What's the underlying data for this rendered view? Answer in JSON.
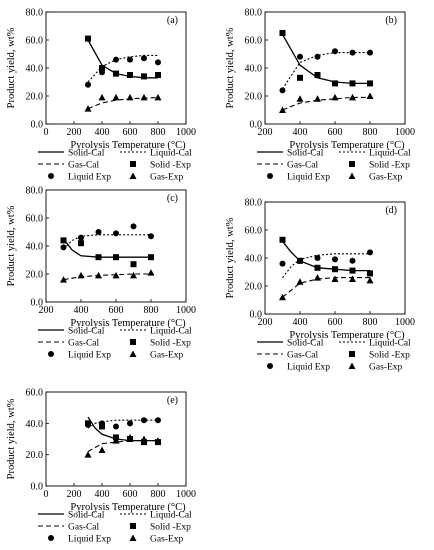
{
  "shared": {
    "xlabel": "Pyrolysis Temperature (°C)",
    "ylabel": "Product yield, wt%",
    "legend": {
      "solid_cal": "Solid-Cal",
      "liquid_cal": "Liquid-Cal",
      "gas_cal": "Gas-Cal",
      "solid_exp": "Solid -Exp",
      "liquid_exp": "Liquid Exp",
      "gas_exp": "Gas-Exp"
    }
  },
  "chart_data": [
    {
      "type": "line",
      "panel_label": "(a)",
      "xlabel": "Pyrolysis Temperature (°C)",
      "ylabel": "Product yield, wt%",
      "xlim": [
        0,
        1000
      ],
      "ylim": [
        0,
        80
      ],
      "xticks": [
        0,
        200,
        400,
        600,
        800,
        1000
      ],
      "yticks": [
        "0.0",
        "20.0",
        "40.0",
        "60.0",
        "80.0"
      ],
      "exp_x": [
        300,
        400,
        500,
        600,
        700,
        800
      ],
      "series": [
        {
          "name": "Solid-Cal",
          "kind": "line",
          "style": "solid",
          "x": [
            300,
            400,
            500,
            600,
            700,
            800
          ],
          "values": [
            60,
            42,
            36,
            34,
            33,
            33
          ]
        },
        {
          "name": "Liquid-Cal",
          "kind": "line",
          "style": "dotted",
          "x": [
            300,
            400,
            500,
            600,
            700,
            800
          ],
          "values": [
            30,
            41,
            46,
            48,
            49,
            49
          ]
        },
        {
          "name": "Gas-Cal",
          "kind": "line",
          "style": "dashed",
          "x": [
            300,
            400,
            500,
            600,
            700,
            800
          ],
          "values": [
            11,
            15,
            17,
            18,
            18.5,
            19
          ]
        },
        {
          "name": "Solid -Exp",
          "kind": "marker",
          "marker": "square",
          "values": [
            61,
            40,
            36,
            35,
            34,
            35
          ]
        },
        {
          "name": "Liquid Exp",
          "kind": "marker",
          "marker": "circle",
          "values": [
            28,
            37,
            46,
            46,
            47,
            44
          ]
        },
        {
          "name": "Gas-Exp",
          "kind": "marker",
          "marker": "triangle",
          "values": [
            11,
            19,
            19,
            19,
            19,
            19
          ]
        }
      ]
    },
    {
      "type": "line",
      "panel_label": "(b)",
      "xlabel": "Pyrolysis Temperature (°C)",
      "ylabel": "Product yield, wt%",
      "xlim": [
        200,
        1000
      ],
      "ylim": [
        0,
        80
      ],
      "xticks": [
        200,
        400,
        600,
        800,
        1000
      ],
      "yticks": [
        "0.0",
        "20.0",
        "40.0",
        "60.0",
        "80.0"
      ],
      "exp_x": [
        300,
        400,
        500,
        600,
        700,
        800
      ],
      "series": [
        {
          "name": "Solid-Cal",
          "kind": "line",
          "style": "solid",
          "x": [
            300,
            400,
            500,
            600,
            700,
            800
          ],
          "values": [
            64,
            42,
            33,
            30,
            29,
            29
          ]
        },
        {
          "name": "Liquid-Cal",
          "kind": "line",
          "style": "dotted",
          "x": [
            300,
            400,
            500,
            600,
            700,
            800
          ],
          "values": [
            25,
            44,
            49,
            51,
            51,
            51
          ]
        },
        {
          "name": "Gas-Cal",
          "kind": "line",
          "style": "dashed",
          "x": [
            300,
            400,
            500,
            600,
            700,
            800
          ],
          "values": [
            10,
            15,
            17,
            18,
            19,
            19
          ]
        },
        {
          "name": "Solid -Exp",
          "kind": "marker",
          "marker": "square",
          "values": [
            65,
            33,
            35,
            29,
            29,
            29
          ]
        },
        {
          "name": "Liquid Exp",
          "kind": "marker",
          "marker": "circle",
          "values": [
            24,
            48,
            48,
            52,
            51,
            51
          ]
        },
        {
          "name": "Gas-Exp",
          "kind": "marker",
          "marker": "triangle",
          "values": [
            10,
            18,
            18,
            19,
            19,
            20
          ]
        }
      ]
    },
    {
      "type": "line",
      "panel_label": "(c)",
      "xlabel": "Pyrolysis Temperature (°C)",
      "ylabel": "Product yield, wt%",
      "xlim": [
        200,
        1000
      ],
      "ylim": [
        0,
        80
      ],
      "xticks": [
        200,
        400,
        600,
        800,
        1000
      ],
      "yticks": [
        "0.0",
        "20.0",
        "40.0",
        "60.0",
        "80.0"
      ],
      "exp_x": [
        300,
        400,
        500,
        600,
        700,
        800
      ],
      "series": [
        {
          "name": "Solid-Cal",
          "kind": "line",
          "style": "solid",
          "x": [
            300,
            350,
            400,
            500,
            600,
            700,
            800
          ],
          "values": [
            45,
            37,
            33,
            32,
            32,
            32,
            32
          ]
        },
        {
          "name": "Liquid-Cal",
          "kind": "line",
          "style": "dotted",
          "x": [
            300,
            350,
            400,
            500,
            600,
            700,
            800
          ],
          "values": [
            38,
            44,
            47,
            48,
            48,
            48,
            48
          ]
        },
        {
          "name": "Gas-Cal",
          "kind": "line",
          "style": "dashed",
          "x": [
            300,
            400,
            500,
            600,
            700,
            800
          ],
          "values": [
            16,
            18,
            19,
            19.5,
            20,
            20
          ]
        },
        {
          "name": "Solid -Exp",
          "kind": "marker",
          "marker": "square",
          "values": [
            44,
            42,
            32,
            32,
            27,
            32
          ]
        },
        {
          "name": "Liquid Exp",
          "kind": "marker",
          "marker": "circle",
          "values": [
            39,
            46,
            50,
            49,
            54,
            47
          ]
        },
        {
          "name": "Gas-Exp",
          "kind": "marker",
          "marker": "triangle",
          "values": [
            16,
            19,
            19,
            19,
            19,
            21
          ]
        }
      ]
    },
    {
      "type": "line",
      "panel_label": "(d)",
      "xlabel": "Pyrolysis Temperature (°C)",
      "ylabel": "Product yield, wt%",
      "xlim": [
        200,
        1000
      ],
      "ylim": [
        0,
        80
      ],
      "xticks": [
        200,
        400,
        600,
        800,
        1000
      ],
      "yticks": [
        "0.0",
        "20.0",
        "40.0",
        "60.0",
        "80.0"
      ],
      "exp_x": [
        300,
        400,
        500,
        600,
        700,
        800
      ],
      "series": [
        {
          "name": "Solid-Cal",
          "kind": "line",
          "style": "solid",
          "x": [
            300,
            350,
            400,
            500,
            600,
            700,
            800
          ],
          "values": [
            52,
            44,
            38,
            33,
            32,
            31,
            31
          ]
        },
        {
          "name": "Liquid-Cal",
          "kind": "line",
          "style": "dotted",
          "x": [
            300,
            350,
            400,
            500,
            600,
            700,
            800
          ],
          "values": [
            26,
            34,
            39,
            42,
            43,
            43,
            43
          ]
        },
        {
          "name": "Gas-Cal",
          "kind": "line",
          "style": "dashed",
          "x": [
            300,
            400,
            500,
            600,
            700,
            800
          ],
          "values": [
            12,
            22,
            25,
            26,
            26,
            26
          ]
        },
        {
          "name": "Solid -Exp",
          "kind": "marker",
          "marker": "square",
          "values": [
            53,
            38,
            33,
            32,
            31,
            29
          ]
        },
        {
          "name": "Liquid Exp",
          "kind": "marker",
          "marker": "circle",
          "values": [
            36,
            38,
            40,
            39,
            38,
            44
          ]
        },
        {
          "name": "Gas-Exp",
          "kind": "marker",
          "marker": "triangle",
          "values": [
            12,
            23,
            26,
            25,
            25,
            24
          ]
        }
      ]
    },
    {
      "type": "line",
      "panel_label": "(e)",
      "xlabel": "Pyrolysis Temperature (°C)",
      "ylabel": "Product yield, wt%",
      "xlim": [
        0,
        1000
      ],
      "ylim": [
        0,
        60
      ],
      "xticks": [
        0,
        200,
        400,
        600,
        800,
        1000
      ],
      "yticks": [
        "0.0",
        "20.0",
        "40.0",
        "60.0"
      ],
      "exp_x": [
        300,
        400,
        500,
        600,
        700,
        800
      ],
      "series": [
        {
          "name": "Solid-Cal",
          "kind": "line",
          "style": "solid",
          "x": [
            300,
            350,
            400,
            500,
            600,
            700,
            800
          ],
          "values": [
            44,
            37,
            33,
            30,
            29,
            29,
            29
          ]
        },
        {
          "name": "Liquid-Cal",
          "kind": "line",
          "style": "dotted",
          "x": [
            300,
            350,
            400,
            500,
            600,
            700,
            800
          ],
          "values": [
            37,
            40,
            41,
            42,
            42,
            42,
            42
          ]
        },
        {
          "name": "Gas-Cal",
          "kind": "line",
          "style": "dashed",
          "x": [
            300,
            400,
            500,
            600,
            700,
            800
          ],
          "values": [
            22,
            27,
            28,
            29,
            29,
            29
          ]
        },
        {
          "name": "Solid -Exp",
          "kind": "marker",
          "marker": "square",
          "values": [
            40,
            38,
            31,
            30,
            28,
            28
          ]
        },
        {
          "name": "Liquid Exp",
          "kind": "marker",
          "marker": "circle",
          "values": [
            39,
            40,
            38,
            40,
            42,
            42
          ]
        },
        {
          "name": "Gas-Exp",
          "kind": "marker",
          "marker": "triangle",
          "values": [
            20,
            23,
            29,
            31,
            30,
            29
          ]
        }
      ]
    }
  ]
}
